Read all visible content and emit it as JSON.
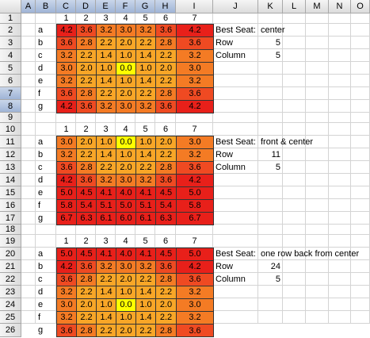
{
  "columns": [
    "A",
    "B",
    "C",
    "D",
    "E",
    "F",
    "G",
    "H",
    "I",
    "J",
    "K",
    "L",
    "M",
    "N",
    "O"
  ],
  "rows": [
    "1",
    "2",
    "3",
    "4",
    "5",
    "6",
    "7",
    "8",
    "9",
    "10",
    "11",
    "12",
    "13",
    "14",
    "15",
    "16",
    "17",
    "18",
    "19",
    "20",
    "21",
    "22",
    "23",
    "24",
    "25",
    "26"
  ],
  "selected_rows": [
    "7",
    "8"
  ],
  "selected_columns": [
    "A",
    "B",
    "C",
    "D",
    "E",
    "F",
    "G",
    "H"
  ],
  "seat_numbers": [
    "1",
    "2",
    "3",
    "4",
    "5",
    "6",
    "7"
  ],
  "row_letters": [
    "a",
    "b",
    "c",
    "d",
    "e",
    "f",
    "g"
  ],
  "palette": {
    "red": "#e8201a",
    "redorange": "#ef4a22",
    "orange": "#f47b24",
    "lightorange": "#f8a627",
    "yellow": "#ffff00"
  },
  "blocks": [
    {
      "values": [
        [
          "4.2",
          "3.6",
          "3.2",
          "3.0",
          "3.2",
          "3.6",
          "4.2"
        ],
        [
          "3.6",
          "2.8",
          "2.2",
          "2.0",
          "2.2",
          "2.8",
          "3.6"
        ],
        [
          "3.2",
          "2.2",
          "1.4",
          "1.0",
          "1.4",
          "2.2",
          "3.2"
        ],
        [
          "3.0",
          "2.0",
          "1.0",
          "0.0",
          "1.0",
          "2.0",
          "3.0"
        ],
        [
          "3.2",
          "2.2",
          "1.4",
          "1.0",
          "1.4",
          "2.2",
          "3.2"
        ],
        [
          "3.6",
          "2.8",
          "2.2",
          "2.0",
          "2.2",
          "2.8",
          "3.6"
        ],
        [
          "4.2",
          "3.6",
          "3.2",
          "3.0",
          "3.2",
          "3.6",
          "4.2"
        ]
      ],
      "info": {
        "title_label": "Best Seat:",
        "title_value": "center",
        "row_label": "Row",
        "row_value": "5",
        "col_label": "Column",
        "col_value": "5"
      }
    },
    {
      "values": [
        [
          "3.0",
          "2.0",
          "1.0",
          "0.0",
          "1.0",
          "2.0",
          "3.0"
        ],
        [
          "3.2",
          "2.2",
          "1.4",
          "1.0",
          "1.4",
          "2.2",
          "3.2"
        ],
        [
          "3.6",
          "2.8",
          "2.2",
          "2.0",
          "2.2",
          "2.8",
          "3.6"
        ],
        [
          "4.2",
          "3.6",
          "3.2",
          "3.0",
          "3.2",
          "3.6",
          "4.2"
        ],
        [
          "5.0",
          "4.5",
          "4.1",
          "4.0",
          "4.1",
          "4.5",
          "5.0"
        ],
        [
          "5.8",
          "5.4",
          "5.1",
          "5.0",
          "5.1",
          "5.4",
          "5.8"
        ],
        [
          "6.7",
          "6.3",
          "6.1",
          "6.0",
          "6.1",
          "6.3",
          "6.7"
        ]
      ],
      "info": {
        "title_label": "Best Seat:",
        "title_value": "front  & center",
        "row_label": "Row",
        "row_value": "11",
        "col_label": "Column",
        "col_value": "5"
      }
    },
    {
      "values": [
        [
          "5.0",
          "4.5",
          "4.1",
          "4.0",
          "4.1",
          "4.5",
          "5.0"
        ],
        [
          "4.2",
          "3.6",
          "3.2",
          "3.0",
          "3.2",
          "3.6",
          "4.2"
        ],
        [
          "3.6",
          "2.8",
          "2.2",
          "2.0",
          "2.2",
          "2.8",
          "3.6"
        ],
        [
          "3.2",
          "2.2",
          "1.4",
          "1.0",
          "1.4",
          "2.2",
          "3.2"
        ],
        [
          "3.0",
          "2.0",
          "1.0",
          "0.0",
          "1.0",
          "2.0",
          "3.0"
        ],
        [
          "3.2",
          "2.2",
          "1.4",
          "1.0",
          "1.4",
          "2.2",
          "3.2"
        ],
        [
          "3.6",
          "2.8",
          "2.2",
          "2.0",
          "2.2",
          "2.8",
          "3.6"
        ]
      ],
      "info": {
        "title_label": "Best Seat:",
        "title_value": "one row back from center",
        "row_label": "Row",
        "row_value": "24",
        "col_label": "Column",
        "col_value": "5"
      }
    }
  ]
}
